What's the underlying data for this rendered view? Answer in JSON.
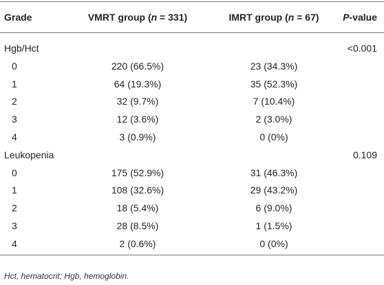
{
  "table": {
    "header": [
      [
        {
          "text": "Grade"
        }
      ],
      [
        {
          "text": "VMRT group ("
        },
        {
          "text": "n",
          "italic": true
        },
        {
          "text": " = 331)"
        }
      ],
      [
        {
          "text": "IMRT group ("
        },
        {
          "text": "n",
          "italic": true
        },
        {
          "text": " = 67)"
        }
      ],
      [
        {
          "text": "P",
          "italic": true
        },
        {
          "text": "-value"
        }
      ]
    ],
    "groups": [
      {
        "label": "Hgb/Hct",
        "p": "<0.001",
        "rows": [
          [
            "0",
            "220 (66.5%)",
            "23 (34.3%)"
          ],
          [
            "1",
            "64 (19.3%)",
            "35 (52.3%)"
          ],
          [
            "2",
            "32 (9.7%)",
            "7 (10.4%)"
          ],
          [
            "3",
            "12 (3.6%)",
            "2 (3.0%)"
          ],
          [
            "4",
            "3 (0.9%)",
            "0 (0%)"
          ]
        ]
      },
      {
        "label": "Leukopenia",
        "p": "0.109",
        "rows": [
          [
            "0",
            "175 (52.9%)",
            "31 (46.3%)"
          ],
          [
            "1",
            "108 (32.6%)",
            "29 (43.2%)"
          ],
          [
            "2",
            "18 (5.4%)",
            "6 (9.0%)"
          ],
          [
            "3",
            "28 (8.5%)",
            "1 (1.5%)"
          ],
          [
            "4",
            "2 (0.6%)",
            "0 (0%)"
          ]
        ]
      }
    ],
    "footnote": "Hct, hematocrit; Hgb, hemoglobin."
  }
}
